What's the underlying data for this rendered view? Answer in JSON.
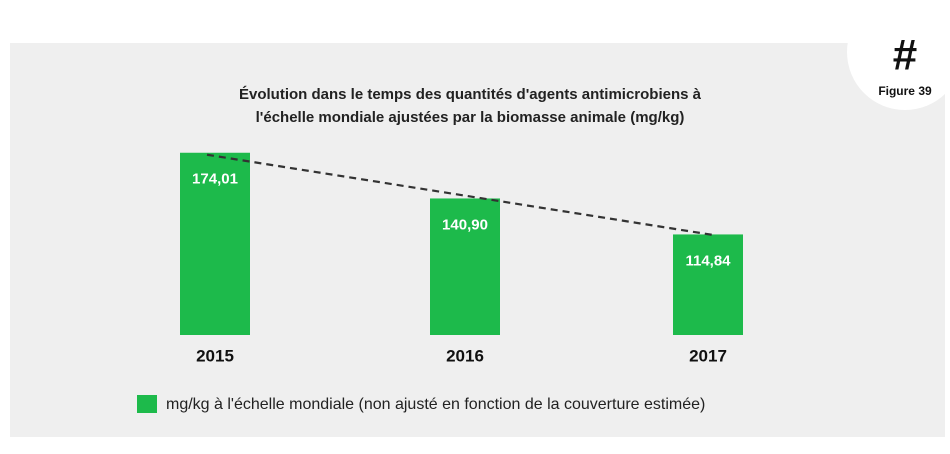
{
  "chart_data": {
    "type": "bar",
    "title": [
      "Évolution dans le temps des quantités d'agents antimicrobiens à",
      "l'échelle mondiale ajustées par la biomasse animale (mg/kg)"
    ],
    "badge": {
      "symbol": "#",
      "label": "Figure 39"
    },
    "categories": [
      "2015",
      "2016",
      "2017"
    ],
    "series": [
      {
        "name": "mg/kg à l'échelle mondiale (non ajusté en fonction de la couverture estimée)",
        "color": "#1dba4b",
        "values": [
          174.01,
          140.9,
          114.84
        ],
        "value_labels": [
          "174,01",
          "140,90",
          "114,84"
        ]
      }
    ],
    "ylim": [
      42,
      176
    ],
    "trendline": "dashed",
    "grid": false
  }
}
